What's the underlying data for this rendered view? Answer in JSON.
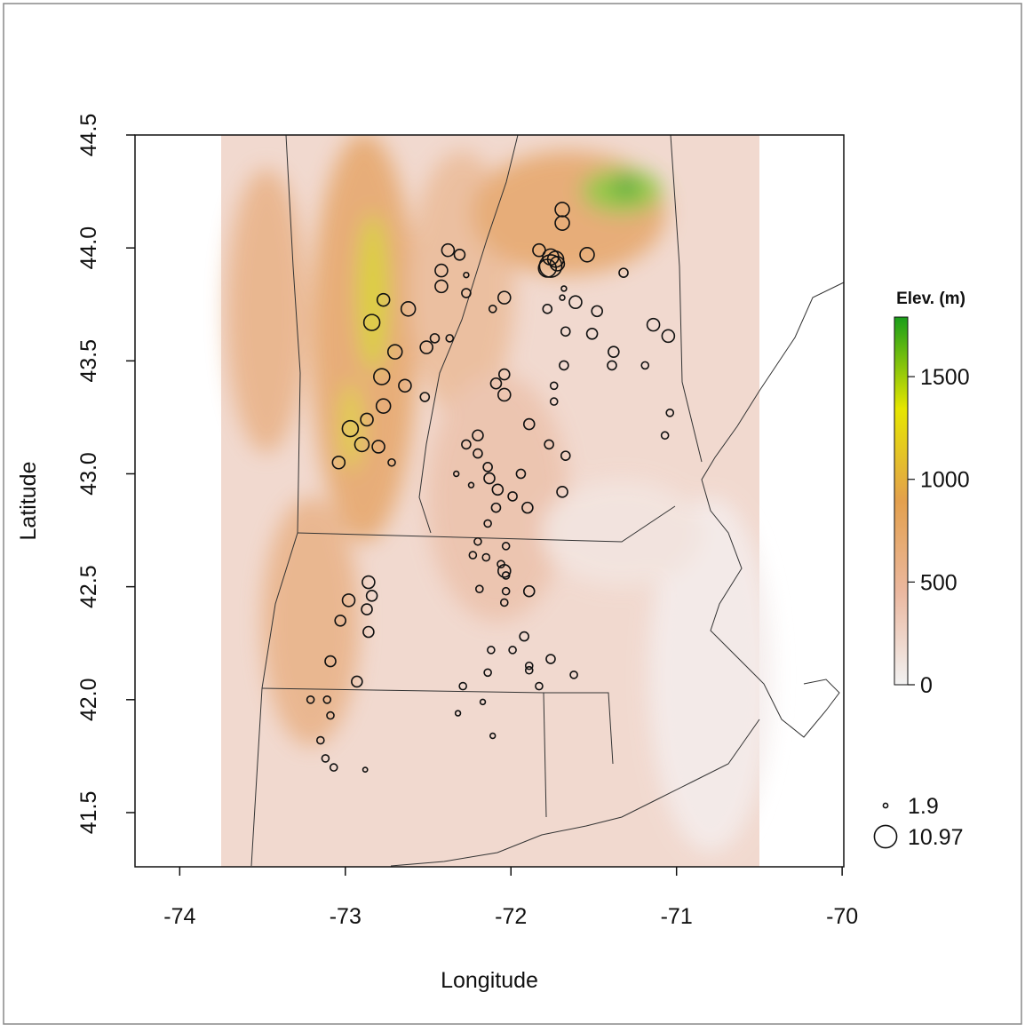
{
  "chart_data": {
    "type": "scatter",
    "x_label": "Longitude",
    "y_label": "Latitude",
    "xlim": [
      -74.27,
      -69.99
    ],
    "ylim": [
      41.26,
      44.5
    ],
    "xticks": [
      -74,
      -73,
      -72,
      -71,
      -70
    ],
    "yticks": [
      41.5,
      {
        "value": 42,
        "label": "42.0"
      },
      42.5,
      {
        "value": 43,
        "label": "43.0"
      },
      43.5,
      {
        "value": 44,
        "label": "44.0"
      },
      44.5
    ],
    "x": [
      -71.69,
      -71.69,
      -71.83,
      -71.76,
      -71.73,
      -71.72,
      -71.76,
      -71.78,
      -71.54,
      -72.38,
      -72.31,
      -72.42,
      -72.42,
      -72.27,
      -72.27,
      -72.04,
      -72.11,
      -71.68,
      -71.69,
      -71.78,
      -71.61,
      -71.48,
      -71.32,
      -72.77,
      -72.62,
      -72.84,
      -72.46,
      -72.37,
      -72.51,
      -72.7,
      -71.67,
      -71.51,
      -71.14,
      -71.05,
      -71.38,
      -71.39,
      -71.19,
      -71.68,
      -72.78,
      -72.04,
      -72.09,
      -72.64,
      -72.52,
      -72.04,
      -71.74,
      -71.74,
      -72.77,
      -71.04,
      -72.87,
      -71.89,
      -72.97,
      -72.2,
      -71.07,
      -72.9,
      -72.27,
      -71.77,
      -72.8,
      -72.2,
      -71.67,
      -72.72,
      -73.04,
      -72.14,
      -72.33,
      -71.94,
      -72.13,
      -72.24,
      -72.08,
      -71.69,
      -71.99,
      -72.09,
      -71.9,
      -72.14,
      -72.2,
      -72.03,
      -72.23,
      -72.15,
      -72.06,
      -72.04,
      -72.86,
      -72.03,
      -72.19,
      -72.03,
      -71.89,
      -72.84,
      -72.98,
      -72.04,
      -72.87,
      -73.03,
      -72.86,
      -71.92,
      -72.12,
      -71.99,
      -73.09,
      -71.76,
      -71.89,
      -71.89,
      -72.14,
      -71.62,
      -72.93,
      -72.29,
      -71.83,
      -73.21,
      -73.11,
      -72.17,
      -73.09,
      -72.32,
      -73.15,
      -72.11,
      -73.12,
      -73.07,
      -72.88
    ],
    "y": [
      44.17,
      44.11,
      43.99,
      43.96,
      43.95,
      43.93,
      43.92,
      43.91,
      43.97,
      43.99,
      43.97,
      43.9,
      43.83,
      43.88,
      43.8,
      43.78,
      43.73,
      43.82,
      43.78,
      43.73,
      43.76,
      43.72,
      43.89,
      43.77,
      43.73,
      43.67,
      43.6,
      43.6,
      43.56,
      43.54,
      43.63,
      43.62,
      43.66,
      43.61,
      43.54,
      43.48,
      43.48,
      43.48,
      43.43,
      43.44,
      43.4,
      43.39,
      43.34,
      43.35,
      43.39,
      43.32,
      43.3,
      43.27,
      43.24,
      43.22,
      43.2,
      43.17,
      43.17,
      43.13,
      43.13,
      43.13,
      43.12,
      43.09,
      43.08,
      43.05,
      43.05,
      43.03,
      43.0,
      43.0,
      42.98,
      42.95,
      42.93,
      42.92,
      42.9,
      42.85,
      42.85,
      42.78,
      42.7,
      42.68,
      42.64,
      42.63,
      42.6,
      42.57,
      42.52,
      42.55,
      42.49,
      42.48,
      42.48,
      42.46,
      42.44,
      42.43,
      42.4,
      42.35,
      42.3,
      42.28,
      42.22,
      42.22,
      42.17,
      42.18,
      42.15,
      42.13,
      42.12,
      42.11,
      42.08,
      42.06,
      42.06,
      42.0,
      42.0,
      41.99,
      41.93,
      41.94,
      41.82,
      41.84,
      41.74,
      41.7,
      41.69
    ],
    "sizes": [
      6.8,
      6.8,
      5.9,
      7.7,
      7.7,
      6.8,
      10.97,
      8.6,
      6.8,
      5.9,
      5,
      5.9,
      5.9,
      2.2,
      4.1,
      5.9,
      3.2,
      2.2,
      2.2,
      4.1,
      5.9,
      5,
      4.1,
      5.9,
      6.8,
      7.7,
      4.1,
      3.2,
      5.9,
      6.8,
      4.1,
      5,
      5.9,
      5.9,
      5,
      4.1,
      3.2,
      4.1,
      7.7,
      5,
      5,
      5.9,
      4.1,
      5.9,
      3.2,
      3.2,
      6.8,
      3.2,
      5.9,
      5,
      7.7,
      5,
      3.2,
      6.8,
      4.1,
      4.1,
      5.9,
      4.1,
      4.1,
      3.2,
      5.9,
      4.1,
      2.2,
      4.1,
      5,
      2.2,
      5,
      5,
      4.1,
      4.1,
      5,
      3.2,
      3.2,
      3.2,
      3.2,
      3.2,
      3.2,
      5.9,
      5.9,
      3.2,
      3.2,
      3.2,
      5,
      5,
      5.9,
      3.2,
      5,
      5,
      5,
      4.1,
      3.2,
      3.2,
      5,
      4.1,
      3.2,
      3.2,
      3.2,
      3.2,
      5,
      3.2,
      3.2,
      3.2,
      3.2,
      2.2,
      3.2,
      2.2,
      3.2,
      2.2,
      3.2,
      3.2,
      1.9
    ],
    "size_legend": [
      1.9,
      10.97
    ],
    "colorbar": {
      "title": "Elev. (m)",
      "lim": [
        0,
        1790
      ],
      "ticks": [
        0,
        500,
        1000,
        1500
      ],
      "colors": [
        "#f2f2f2",
        "#ebb8a0",
        "#e3a04d",
        "#e6e600",
        "#1a9e1a"
      ]
    }
  }
}
